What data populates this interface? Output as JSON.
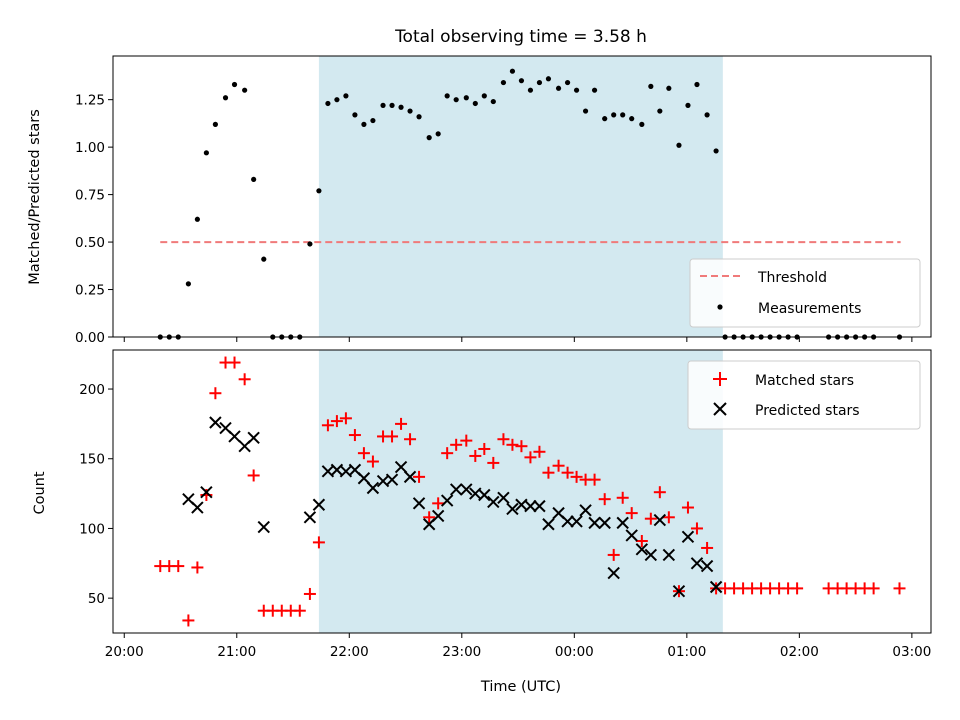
{
  "chart_data": [
    {
      "type": "scatter",
      "title": "Total observing time = 3.58 h",
      "xlabel": "",
      "ylabel": "Matched/Predicted stars",
      "ylim": [
        0,
        1.48
      ],
      "yticks": [
        "0.00",
        "0.25",
        "0.50",
        "0.75",
        "1.00",
        "1.25"
      ],
      "x_unit": "hours since 20:00 UTC on the plotted night (ticks 20:00 ... 03:00)",
      "xlim": [
        -0.1,
        7.17
      ],
      "shaded_region": {
        "x_start": 1.73,
        "x_end": 5.32,
        "color": "#d3e9f0"
      },
      "legend_placement": "lower-right",
      "series": [
        {
          "name": "Threshold",
          "style": "dashed-line",
          "color": "#f07a7a",
          "x": [
            0.32,
            6.9
          ],
          "y": [
            0.5,
            0.5
          ]
        },
        {
          "name": "Measurements",
          "style": "dot",
          "color": "#000000",
          "points": [
            [
              0.32,
              0
            ],
            [
              0.4,
              0
            ],
            [
              0.48,
              0
            ],
            [
              0.57,
              0.28
            ],
            [
              0.65,
              0.62
            ],
            [
              0.73,
              0.97
            ],
            [
              0.81,
              1.12
            ],
            [
              0.9,
              1.26
            ],
            [
              0.98,
              1.33
            ],
            [
              1.07,
              1.3
            ],
            [
              1.15,
              0.83
            ],
            [
              1.24,
              0.41
            ],
            [
              1.32,
              0
            ],
            [
              1.4,
              0
            ],
            [
              1.48,
              0
            ],
            [
              1.56,
              0
            ],
            [
              1.65,
              0.49
            ],
            [
              1.73,
              0.77
            ],
            [
              1.81,
              1.23
            ],
            [
              1.89,
              1.25
            ],
            [
              1.97,
              1.27
            ],
            [
              2.05,
              1.17
            ],
            [
              2.13,
              1.12
            ],
            [
              2.21,
              1.14
            ],
            [
              2.3,
              1.22
            ],
            [
              2.38,
              1.22
            ],
            [
              2.46,
              1.21
            ],
            [
              2.54,
              1.19
            ],
            [
              2.62,
              1.16
            ],
            [
              2.71,
              1.05
            ],
            [
              2.79,
              1.07
            ],
            [
              2.87,
              1.27
            ],
            [
              2.95,
              1.25
            ],
            [
              3.04,
              1.26
            ],
            [
              3.12,
              1.23
            ],
            [
              3.2,
              1.27
            ],
            [
              3.28,
              1.24
            ],
            [
              3.37,
              1.34
            ],
            [
              3.45,
              1.4
            ],
            [
              3.53,
              1.35
            ],
            [
              3.61,
              1.3
            ],
            [
              3.69,
              1.34
            ],
            [
              3.77,
              1.36
            ],
            [
              3.86,
              1.31
            ],
            [
              3.94,
              1.34
            ],
            [
              4.02,
              1.3
            ],
            [
              4.1,
              1.19
            ],
            [
              4.18,
              1.3
            ],
            [
              4.27,
              1.15
            ],
            [
              4.35,
              1.17
            ],
            [
              4.43,
              1.17
            ],
            [
              4.51,
              1.15
            ],
            [
              4.6,
              1.12
            ],
            [
              4.68,
              1.32
            ],
            [
              4.76,
              1.19
            ],
            [
              4.84,
              1.31
            ],
            [
              4.93,
              1.01
            ],
            [
              5.01,
              1.22
            ],
            [
              5.09,
              1.33
            ],
            [
              5.18,
              1.17
            ],
            [
              5.26,
              0.98
            ],
            [
              5.34,
              0
            ],
            [
              5.42,
              0
            ],
            [
              5.5,
              0
            ],
            [
              5.58,
              0
            ],
            [
              5.66,
              0
            ],
            [
              5.74,
              0
            ],
            [
              5.82,
              0
            ],
            [
              5.9,
              0
            ],
            [
              5.98,
              0
            ],
            [
              6.26,
              0
            ],
            [
              6.34,
              0
            ],
            [
              6.42,
              0
            ],
            [
              6.5,
              0
            ],
            [
              6.58,
              0
            ],
            [
              6.66,
              0
            ],
            [
              6.89,
              0
            ]
          ]
        }
      ]
    },
    {
      "type": "scatter",
      "title": "",
      "xlabel": "Time (UTC)",
      "ylabel": "Count",
      "ylim": [
        25,
        228
      ],
      "yticks": [
        "50",
        "100",
        "150",
        "200"
      ],
      "x_unit": "hours since 20:00 UTC on the plotted night (ticks 20:00 ... 03:00)",
      "xlim": [
        -0.1,
        7.17
      ],
      "xticks": [
        "20:00",
        "21:00",
        "22:00",
        "23:00",
        "00:00",
        "01:00",
        "02:00",
        "03:00"
      ],
      "shaded_region": {
        "x_start": 1.73,
        "x_end": 5.32,
        "color": "#d3e9f0"
      },
      "legend_placement": "upper-right",
      "series": [
        {
          "name": "Matched stars",
          "style": "plus",
          "color": "#ff0000",
          "points": [
            [
              0.32,
              73
            ],
            [
              0.4,
              73
            ],
            [
              0.48,
              73
            ],
            [
              0.57,
              34
            ],
            [
              0.65,
              72
            ],
            [
              0.73,
              124
            ],
            [
              0.81,
              197
            ],
            [
              0.9,
              219
            ],
            [
              0.98,
              219
            ],
            [
              1.07,
              207
            ],
            [
              1.15,
              138
            ],
            [
              1.24,
              41
            ],
            [
              1.32,
              41
            ],
            [
              1.4,
              41
            ],
            [
              1.48,
              41
            ],
            [
              1.56,
              41
            ],
            [
              1.65,
              53
            ],
            [
              1.73,
              90
            ],
            [
              1.81,
              174
            ],
            [
              1.89,
              177
            ],
            [
              1.97,
              179
            ],
            [
              2.05,
              167
            ],
            [
              2.13,
              154
            ],
            [
              2.21,
              148
            ],
            [
              2.3,
              166
            ],
            [
              2.38,
              166
            ],
            [
              2.46,
              175
            ],
            [
              2.54,
              164
            ],
            [
              2.62,
              137
            ],
            [
              2.71,
              108
            ],
            [
              2.79,
              118
            ],
            [
              2.87,
              154
            ],
            [
              2.95,
              160
            ],
            [
              3.04,
              163
            ],
            [
              3.12,
              152
            ],
            [
              3.2,
              157
            ],
            [
              3.28,
              147
            ],
            [
              3.37,
              164
            ],
            [
              3.45,
              160
            ],
            [
              3.53,
              159
            ],
            [
              3.61,
              151
            ],
            [
              3.69,
              155
            ],
            [
              3.77,
              140
            ],
            [
              3.86,
              145
            ],
            [
              3.94,
              140
            ],
            [
              4.02,
              137
            ],
            [
              4.1,
              135
            ],
            [
              4.18,
              135
            ],
            [
              4.27,
              121
            ],
            [
              4.35,
              81
            ],
            [
              4.43,
              122
            ],
            [
              4.51,
              111
            ],
            [
              4.6,
              91
            ],
            [
              4.68,
              107
            ],
            [
              4.76,
              126
            ],
            [
              4.84,
              108
            ],
            [
              4.93,
              55
            ],
            [
              5.01,
              115
            ],
            [
              5.09,
              100
            ],
            [
              5.18,
              86
            ],
            [
              5.26,
              57
            ],
            [
              5.34,
              57
            ],
            [
              5.42,
              57
            ],
            [
              5.5,
              57
            ],
            [
              5.58,
              57
            ],
            [
              5.66,
              57
            ],
            [
              5.74,
              57
            ],
            [
              5.82,
              57
            ],
            [
              5.9,
              57
            ],
            [
              5.98,
              57
            ],
            [
              6.26,
              57
            ],
            [
              6.34,
              57
            ],
            [
              6.42,
              57
            ],
            [
              6.5,
              57
            ],
            [
              6.58,
              57
            ],
            [
              6.66,
              57
            ],
            [
              6.89,
              57
            ]
          ]
        },
        {
          "name": "Predicted stars",
          "style": "x",
          "color": "#000000",
          "points": [
            [
              0.57,
              121
            ],
            [
              0.65,
              115
            ],
            [
              0.73,
              126
            ],
            [
              0.81,
              176
            ],
            [
              0.9,
              172
            ],
            [
              0.98,
              166
            ],
            [
              1.07,
              159
            ],
            [
              1.15,
              165
            ],
            [
              1.24,
              101
            ],
            [
              1.65,
              108
            ],
            [
              1.73,
              117
            ],
            [
              1.81,
              141
            ],
            [
              1.89,
              142
            ],
            [
              1.97,
              141
            ],
            [
              2.05,
              142
            ],
            [
              2.13,
              136
            ],
            [
              2.21,
              129
            ],
            [
              2.3,
              134
            ],
            [
              2.38,
              135
            ],
            [
              2.46,
              144
            ],
            [
              2.54,
              137
            ],
            [
              2.62,
              118
            ],
            [
              2.71,
              103
            ],
            [
              2.79,
              109
            ],
            [
              2.87,
              120
            ],
            [
              2.95,
              128
            ],
            [
              3.04,
              128
            ],
            [
              3.12,
              125
            ],
            [
              3.2,
              124
            ],
            [
              3.28,
              119
            ],
            [
              3.37,
              122
            ],
            [
              3.45,
              114
            ],
            [
              3.53,
              117
            ],
            [
              3.61,
              116
            ],
            [
              3.69,
              116
            ],
            [
              3.77,
              103
            ],
            [
              3.86,
              111
            ],
            [
              3.94,
              105
            ],
            [
              4.02,
              105
            ],
            [
              4.1,
              113
            ],
            [
              4.18,
              104
            ],
            [
              4.27,
              104
            ],
            [
              4.35,
              68
            ],
            [
              4.43,
              104
            ],
            [
              4.51,
              95
            ],
            [
              4.6,
              85
            ],
            [
              4.68,
              81
            ],
            [
              4.76,
              106
            ],
            [
              4.84,
              81
            ],
            [
              4.93,
              55
            ],
            [
              5.01,
              94
            ],
            [
              5.09,
              75
            ],
            [
              5.18,
              73
            ],
            [
              5.26,
              58
            ]
          ]
        }
      ]
    }
  ]
}
